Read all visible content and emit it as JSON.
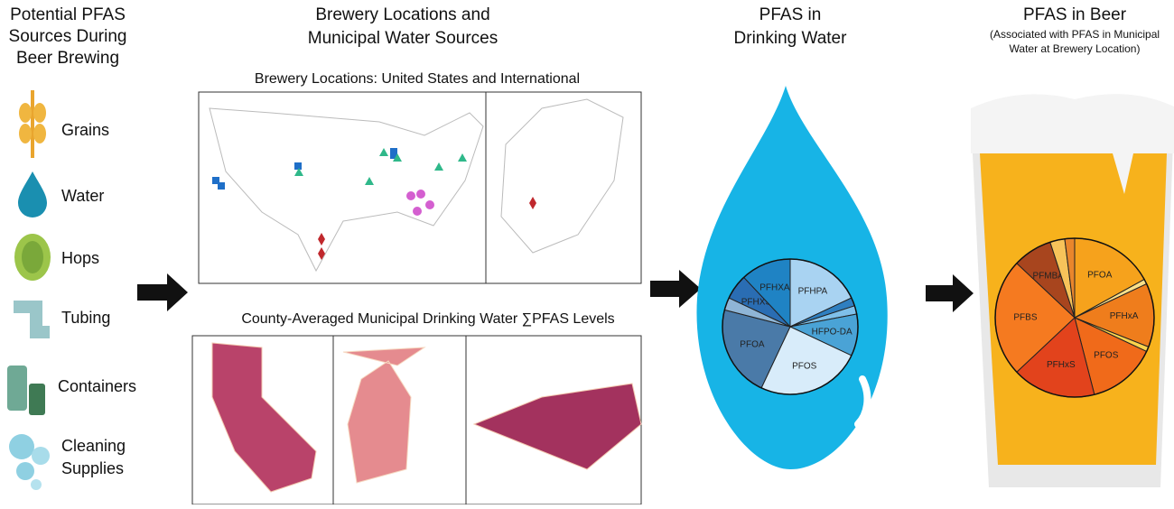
{
  "column1": {
    "title": [
      "Potential PFAS",
      "Sources During",
      "Beer Brewing"
    ],
    "items": [
      "Grains",
      "Water",
      "Hops",
      "Tubing",
      "Containers",
      "Cleaning",
      "Supplies"
    ]
  },
  "column2": {
    "title": [
      "Brewery Locations and",
      "Municipal Water Sources"
    ],
    "map_title": "Brewery Locations: United States and International",
    "county_title": "County-Averaged Municipal Drinking Water ∑PFAS Levels"
  },
  "column3": {
    "title": [
      "PFAS in",
      "Drinking Water"
    ]
  },
  "column4": {
    "title": "PFAS in Beer",
    "subtitle": [
      "(Associated with PFAS in Municipal",
      "Water at Brewery Location)"
    ]
  },
  "water_pie": {
    "labels": [
      "PFHPA",
      null,
      null,
      "HFPO-DA",
      "PFOS",
      "PFOA",
      null,
      "PFHXS",
      "PFHXA"
    ],
    "values": [
      18,
      2,
      2,
      10,
      25,
      22,
      3,
      6,
      12
    ],
    "colors": [
      "#a9d3f2",
      "#2f7fc0",
      "#7fc0ea",
      "#4aa3d6",
      "#d8ecfa",
      "#4a7aa8",
      "#8fb5d6",
      "#2a6db3",
      "#1f83c4"
    ]
  },
  "beer_pie": {
    "labels": [
      "PFOA",
      null,
      "PFHxA",
      null,
      "PFOS",
      "PFHxS",
      "PFBS",
      "PFMBA",
      null,
      null
    ],
    "values": [
      17,
      1,
      13,
      1,
      14,
      17,
      24,
      8,
      3,
      2
    ],
    "colors": [
      "#f6a21c",
      "#fbe08a",
      "#ef7d1c",
      "#fcd34d",
      "#f06a1a",
      "#e2431c",
      "#f57a20",
      "#a8451e",
      "#f7c35a",
      "#e9862c"
    ]
  }
}
